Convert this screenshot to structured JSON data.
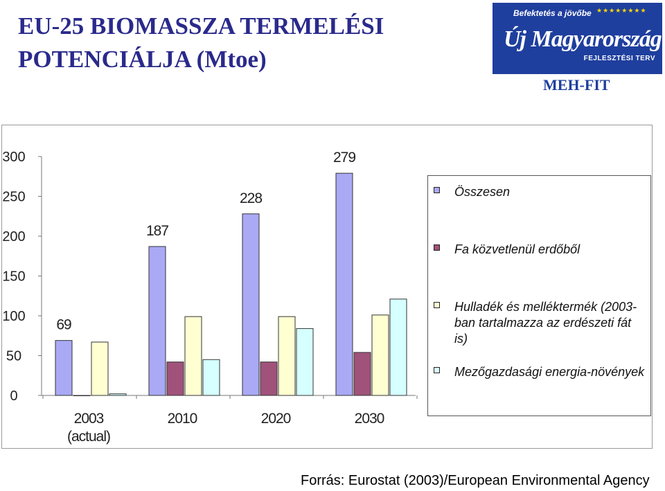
{
  "header": {
    "title_line1": "EU-25 BIOMASSZA TERMELÉSI",
    "title_line2": "POTENCIÁLJA (Mtoe)"
  },
  "logo": {
    "tagline": "Befektetés a jövőbe",
    "main": "Új Magyarország",
    "sub": "FEJLESZTÉSI TERV",
    "org": "MEH-FIT"
  },
  "chart_data": {
    "type": "bar",
    "categories": [
      "2003|(actual)",
      "2010",
      "2020",
      "2030"
    ],
    "ylim": [
      0,
      300
    ],
    "yticks": [
      0,
      50,
      100,
      150,
      200,
      250,
      300
    ],
    "series": [
      {
        "name": "Összesen",
        "values": [
          69,
          187,
          228,
          279
        ],
        "color": "#a9a9f5",
        "labels": [
          "69",
          "187",
          "228",
          "279"
        ]
      },
      {
        "name": "Fa közvetlenül erdőből",
        "values": [
          0,
          42,
          42,
          54
        ],
        "color": "#a0527a"
      },
      {
        "name": "Hulladék és melléktermék (2003-ban tartalmazza az erdészeti fát is)",
        "values": [
          67,
          99,
          99,
          101
        ],
        "color": "#ffffd2"
      },
      {
        "name": "Mezőgazdasági energia-növények",
        "values": [
          2,
          45,
          84,
          121
        ],
        "color": "#d6ffff"
      }
    ]
  },
  "legend": {
    "placement": "right",
    "items": [
      {
        "label": "Összesen",
        "color": "#a9a9f5"
      },
      {
        "label": "Fa közvetlenül erdőből",
        "color": "#a0527a"
      },
      {
        "label": "Hulladék és melléktermék (2003-ban tartalmazza az erdészeti fát is)",
        "color": "#ffffd2"
      },
      {
        "label": "Mezőgazdasági energia-növények",
        "color": "#d6ffff"
      }
    ]
  },
  "footer": {
    "source": "Forrás: Eurostat (2003)/European Environmental Agency"
  }
}
